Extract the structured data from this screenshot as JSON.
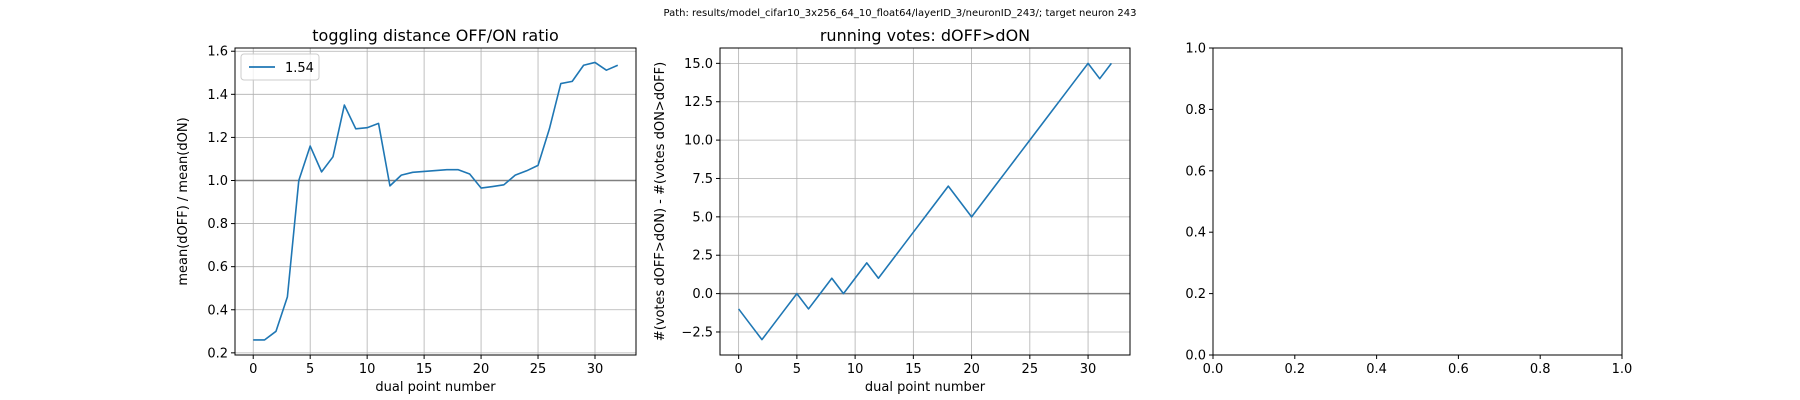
{
  "suptitle": "Path: results/model_cifar10_3x256_64_10_float64/layerID_3/neuronID_243/; target neuron 243",
  "chart_data": [
    {
      "type": "line",
      "title": "toggling distance OFF/ON ratio",
      "xlabel": "dual point number",
      "ylabel": "mean(dOFF) / mean(dON)",
      "xlim": [
        -1.6,
        33.6
      ],
      "ylim": [
        0.19,
        1.615
      ],
      "xticks": [
        0,
        5,
        10,
        15,
        20,
        25,
        30
      ],
      "yticks": [
        0.2,
        0.4,
        0.6,
        0.8,
        1.0,
        1.2,
        1.4,
        1.6
      ],
      "ytick_labels": [
        "0.2",
        "0.4",
        "0.6",
        "0.8",
        "1.0",
        "1.2",
        "1.4",
        "1.6"
      ],
      "grid": true,
      "hline": 1.0,
      "legend": "upper-left",
      "series": [
        {
          "name": "1.54",
          "color": "#1f77b4",
          "x": [
            0,
            1,
            2,
            3,
            4,
            5,
            6,
            7,
            8,
            9,
            10,
            11,
            12,
            13,
            14,
            15,
            16,
            17,
            18,
            19,
            20,
            21,
            22,
            23,
            24,
            25,
            26,
            27,
            28,
            29,
            30,
            31,
            32
          ],
          "values": [
            0.26,
            0.26,
            0.3,
            0.46,
            1.0,
            1.16,
            1.04,
            1.11,
            1.35,
            1.24,
            1.245,
            1.265,
            0.975,
            1.025,
            1.038,
            1.042,
            1.046,
            1.05,
            1.05,
            1.03,
            0.965,
            0.972,
            0.98,
            1.025,
            1.045,
            1.07,
            1.24,
            1.45,
            1.46,
            1.535,
            1.548,
            1.512,
            1.535
          ]
        }
      ]
    },
    {
      "type": "line",
      "title": "running votes: dOFF>dON",
      "xlabel": "dual point number",
      "ylabel": "#(votes dOFF>dON) - #(votes dON>dOFF)",
      "xlim": [
        -1.6,
        33.6
      ],
      "ylim": [
        -4.0,
        16.0
      ],
      "xticks": [
        0,
        5,
        10,
        15,
        20,
        25,
        30
      ],
      "yticks": [
        -2.5,
        0.0,
        2.5,
        5.0,
        7.5,
        10.0,
        12.5,
        15.0
      ],
      "ytick_labels": [
        "−2.5",
        "0.0",
        "2.5",
        "5.0",
        "7.5",
        "10.0",
        "12.5",
        "15.0"
      ],
      "grid": true,
      "hline": 0.0,
      "series": [
        {
          "color": "#1f77b4",
          "x": [
            0,
            1,
            2,
            3,
            4,
            5,
            6,
            7,
            8,
            9,
            10,
            11,
            12,
            13,
            14,
            15,
            16,
            17,
            18,
            19,
            20,
            21,
            22,
            23,
            24,
            25,
            26,
            27,
            28,
            29,
            30,
            31,
            32
          ],
          "values": [
            -1,
            -2,
            -3,
            -2,
            -1,
            0,
            -1,
            0,
            1,
            0,
            1,
            2,
            1,
            2,
            3,
            4,
            5,
            6,
            7,
            6,
            5,
            6,
            7,
            8,
            9,
            10,
            11,
            12,
            13,
            14,
            15,
            14,
            15
          ]
        }
      ]
    },
    {
      "type": "line",
      "title": "",
      "xlabel": "",
      "ylabel": "",
      "xlim": [
        0.0,
        1.0
      ],
      "ylim": [
        0.0,
        1.0
      ],
      "xticks": [
        0.0,
        0.2,
        0.4,
        0.6,
        0.8,
        1.0
      ],
      "xtick_labels": [
        "0.0",
        "0.2",
        "0.4",
        "0.6",
        "0.8",
        "1.0"
      ],
      "yticks": [
        0.0,
        0.2,
        0.4,
        0.6,
        0.8,
        1.0
      ],
      "ytick_labels": [
        "0.0",
        "0.2",
        "0.4",
        "0.6",
        "0.8",
        "1.0"
      ],
      "grid": false,
      "series": []
    }
  ]
}
